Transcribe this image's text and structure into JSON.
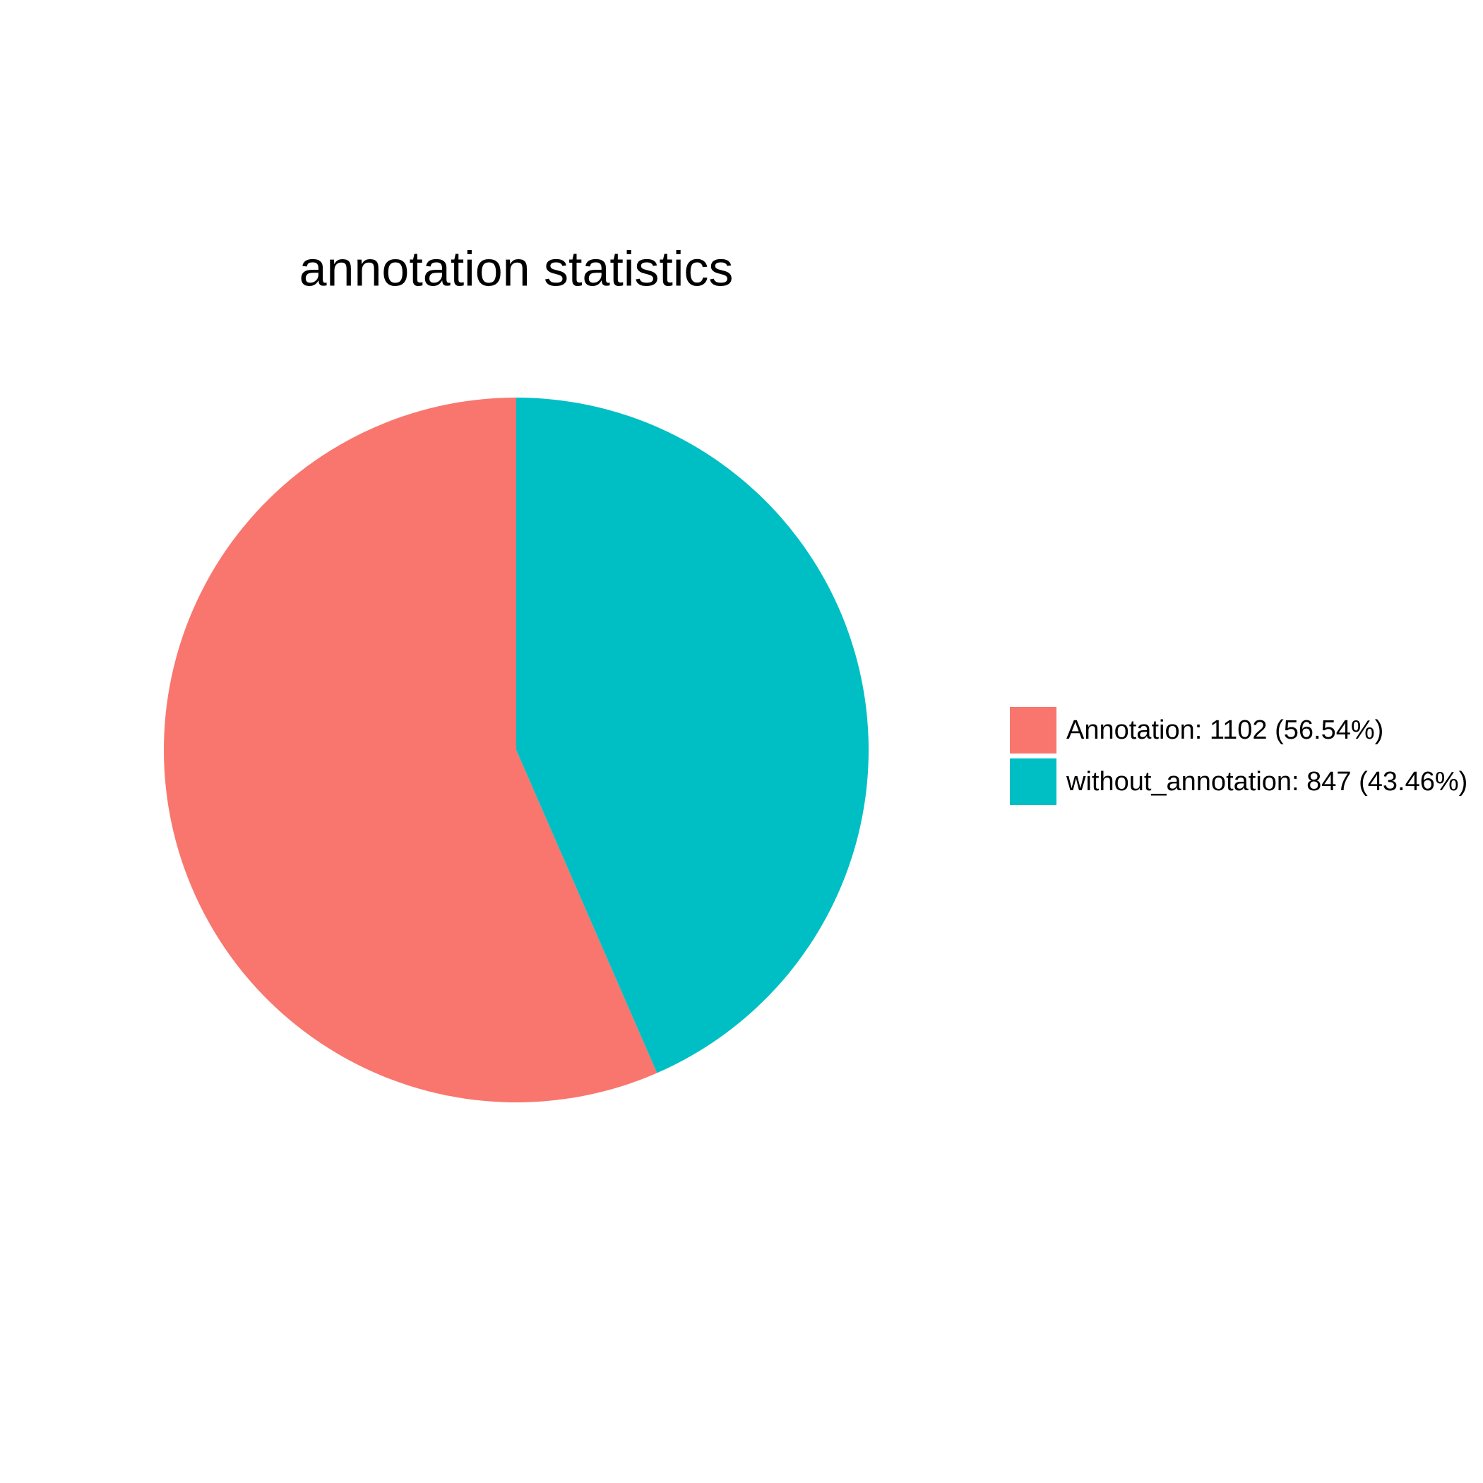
{
  "chart_data": {
    "type": "pie",
    "title": "annotation statistics",
    "categories": [
      "Annotation: 1102 (56.54%)",
      "without_annotation: 847 (43.46%)"
    ],
    "values": [
      1102,
      847
    ],
    "colors": [
      "#F8766D",
      "#00BFC4"
    ],
    "legend": "right"
  }
}
